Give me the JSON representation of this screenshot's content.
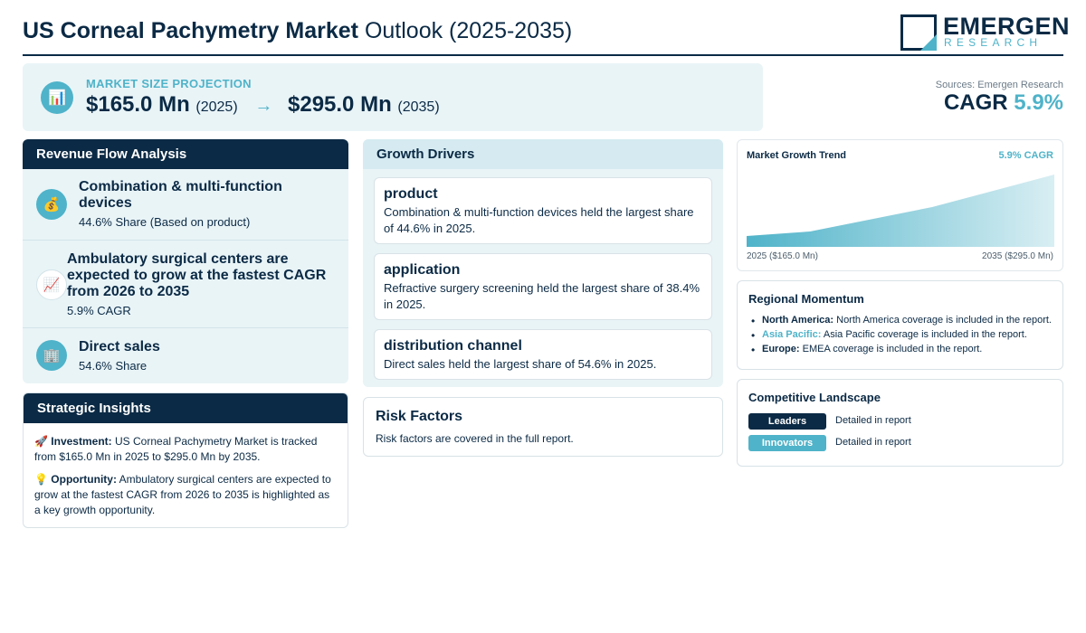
{
  "header": {
    "title_bold": "US Corneal Pachymetry Market",
    "title_rest": "Outlook (2025-2035)",
    "logo_name": "EMERGEN",
    "logo_sub": "RESEARCH"
  },
  "projection": {
    "icon": "bar-chart-icon",
    "label": "MARKET SIZE PROJECTION",
    "start_value": "$165.0 Mn",
    "start_year": "(2025)",
    "arrow": "→",
    "end_value": "$295.0 Mn",
    "end_year": "(2035)"
  },
  "sources": "Sources: Emergen Research",
  "cagr": {
    "label": "CAGR",
    "value": "5.9%"
  },
  "revenue": {
    "title": "Revenue Flow Analysis",
    "items": [
      {
        "icon": "money-bag-icon",
        "title": "Combination & multi-function devices",
        "sub": "44.6% Share (Based on product)"
      },
      {
        "icon": "trend-up-icon",
        "title": "Ambulatory surgical centers are expected to grow at the fastest CAGR from 2026 to 2035",
        "sub": "5.9% CAGR"
      },
      {
        "icon": "building-icon",
        "title": "Direct sales",
        "sub": "54.6% Share"
      }
    ]
  },
  "strategic": {
    "title": "Strategic Insights",
    "investment_label": "Investment:",
    "investment_text": "US Corneal Pachymetry Market is tracked from $165.0 Mn in 2025 to $295.0 Mn by 2035.",
    "opportunity_label": "Opportunity:",
    "opportunity_text": "Ambulatory surgical centers are expected to grow at the fastest CAGR from 2026 to 2035 is highlighted as a key growth opportunity."
  },
  "drivers": {
    "title": "Growth Drivers",
    "cards": [
      {
        "title": "product",
        "text": "Combination & multi-function devices held the largest share of 44.6% in 2025."
      },
      {
        "title": "application",
        "text": "Refractive surgery screening held the largest share of 38.4% in 2025."
      },
      {
        "title": "distribution channel",
        "text": "Direct sales held the largest share of 54.6% in 2025."
      }
    ]
  },
  "risk": {
    "title": "Risk Factors",
    "text": "Risk factors are covered in the full report."
  },
  "trend": {
    "title": "Market Growth Trend",
    "cagr": "5.9% CAGR",
    "start_label": "2025 ($165.0 Mn)",
    "end_label": "2035 ($295.0 Mn)",
    "fill_color": "#4fb3c9"
  },
  "regional": {
    "title": "Regional Momentum",
    "items": [
      {
        "name": "North America:",
        "text": "North America coverage is included in the report."
      },
      {
        "name": "Asia Pacific:",
        "text": "Asia Pacific coverage is included in the report."
      },
      {
        "name": "Europe:",
        "text": "EMEA coverage is included in the report."
      }
    ]
  },
  "competitive": {
    "title": "Competitive Landscape",
    "rows": [
      {
        "badge": "Leaders",
        "text": "Detailed in report"
      },
      {
        "badge": "Innovators",
        "text": "Detailed in report"
      }
    ]
  },
  "colors": {
    "navy": "#0b2a45",
    "accent": "#4fb3c9",
    "panel": "#e9f4f7"
  }
}
